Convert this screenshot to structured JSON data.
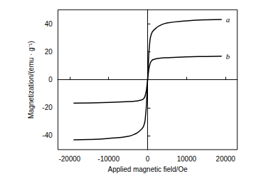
{
  "chart_data": {
    "type": "line",
    "x_label": "Applied magnetic field/Oe",
    "y_label": "Magnetization/(emu · g⁻¹)",
    "xlim": [
      -23000,
      23000
    ],
    "ylim": [
      -50,
      50
    ],
    "xticks": [
      -20000,
      -10000,
      0,
      10000,
      20000
    ],
    "yticks": [
      -40,
      -20,
      0,
      20,
      40
    ],
    "x": [
      -19000,
      -15000,
      -10000,
      -5000,
      -3000,
      -2000,
      -1000,
      -500,
      -200,
      0,
      200,
      500,
      1000,
      2000,
      3000,
      5000,
      10000,
      15000,
      19000
    ],
    "series": [
      {
        "name": "a",
        "color": "#000000",
        "values": [
          -43,
          -42.8,
          -42,
          -40.5,
          -38.5,
          -36.5,
          -33,
          -25,
          -12,
          0,
          12,
          25,
          33,
          36.5,
          38.5,
          40.5,
          42,
          42.8,
          43
        ]
      },
      {
        "name": "b",
        "color": "#000000",
        "values": [
          -16.8,
          -16.6,
          -16.3,
          -15.7,
          -15.3,
          -14.8,
          -13.5,
          -10,
          -5,
          0,
          5,
          10,
          13.5,
          14.8,
          15.3,
          15.7,
          16.3,
          16.6,
          16.8
        ]
      }
    ]
  }
}
